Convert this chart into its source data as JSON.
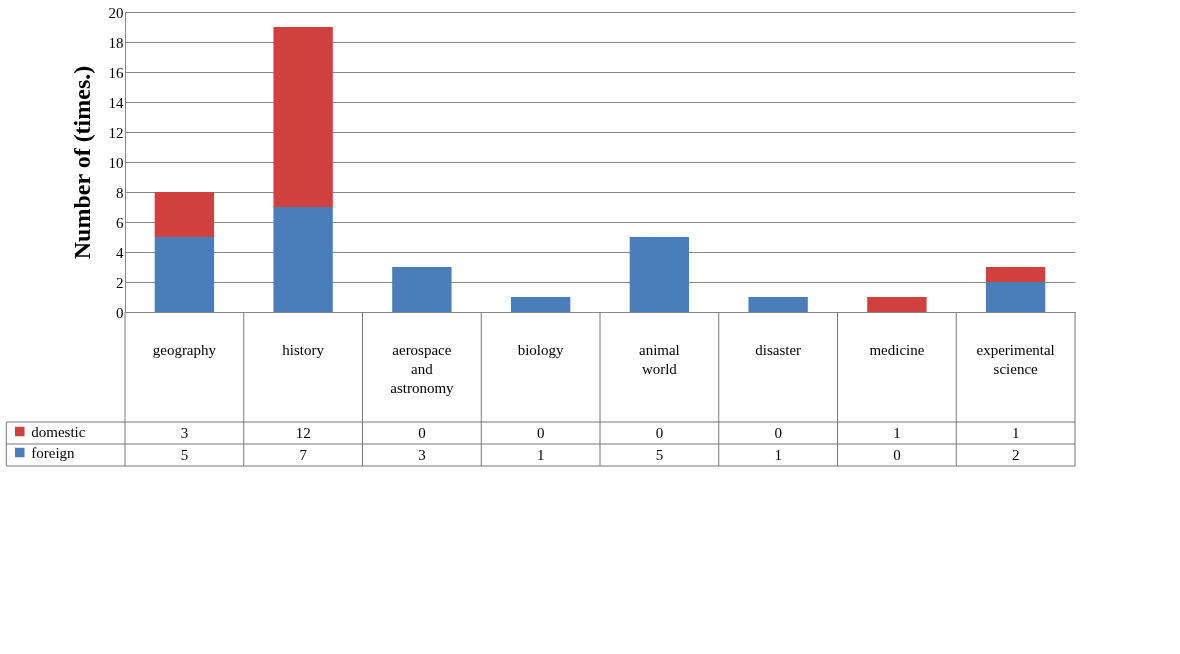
{
  "chart_data": {
    "type": "bar",
    "stacked": true,
    "ylabel": "Number of (times.)",
    "categories": [
      "geography",
      "history",
      "aerospace and astronomy",
      "biology",
      "animal world",
      "disaster",
      "medicine",
      "experimental science"
    ],
    "series": [
      {
        "name": "foreign",
        "color": "#4a7ebb",
        "values": [
          5,
          7,
          3,
          1,
          5,
          1,
          0,
          2
        ]
      },
      {
        "name": "domestic",
        "color": "#d0403d",
        "values": [
          3,
          12,
          0,
          0,
          0,
          0,
          1,
          1
        ]
      }
    ],
    "ylim": [
      0,
      20
    ],
    "yticks": [
      0,
      2,
      4,
      6,
      8,
      10,
      12,
      14,
      16,
      18,
      20
    ],
    "grid": "y",
    "legend": "bottom",
    "data_labels": true
  }
}
